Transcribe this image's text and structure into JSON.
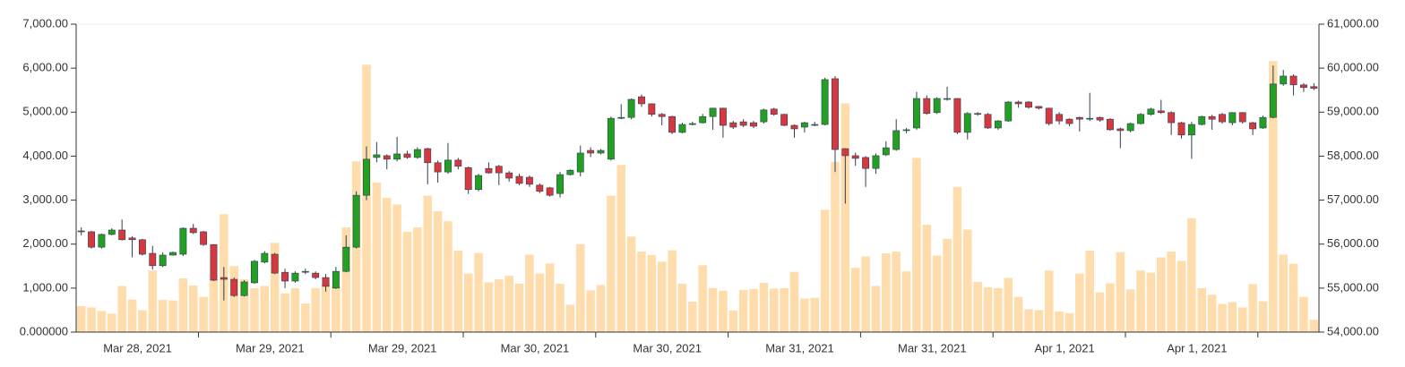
{
  "chart_data": {
    "type": "candlestick",
    "categories": [
      "Mar 28, 2021",
      "Mar 29, 2021",
      "Mar 29, 2021",
      "Mar 30, 2021",
      "Mar 30, 2021",
      "Mar 31, 2021",
      "Mar 31, 2021",
      "Apr 1, 2021",
      "Apr 1, 2021"
    ],
    "open": [
      56300,
      56280,
      55930,
      56220,
      56320,
      56140,
      56100,
      55790,
      55510,
      55750,
      55770,
      56360,
      56280,
      55990,
      55240,
      55200,
      54830,
      55120,
      55590,
      55770,
      55360,
      55160,
      55360,
      55340,
      55240,
      55000,
      55380,
      55930,
      57110,
      57970,
      58010,
      57930,
      58050,
      57970,
      58170,
      57850,
      57640,
      57910,
      57740,
      57240,
      57720,
      57770,
      57620,
      57540,
      57520,
      57340,
      57280,
      57150,
      57580,
      57640,
      58130,
      58070,
      57930,
      58860,
      58880,
      59350,
      59190,
      58950,
      58900,
      58540,
      58720,
      58760,
      58900,
      59090,
      58760,
      58780,
      58760,
      58780,
      59070,
      58950,
      58700,
      58660,
      58700,
      58720,
      59760,
      58170,
      58010,
      57970,
      57720,
      58030,
      58150,
      58580,
      58640,
      59310,
      58990,
      59290,
      59310,
      58540,
      58970,
      58950,
      58640,
      58800,
      59230,
      59230,
      59130,
      59090,
      58950,
      58840,
      58880,
      58840,
      58880,
      58840,
      58620,
      58580,
      58740,
      58950,
      59030,
      58990,
      58760,
      58480,
      58720,
      58900,
      58950,
      58760,
      58990,
      58760,
      58640,
      58880,
      59640,
      59820,
      59620,
      59580
    ],
    "high": [
      56380,
      56300,
      56240,
      56360,
      56560,
      56180,
      56120,
      55960,
      55810,
      55830,
      56380,
      56460,
      56300,
      56000,
      55480,
      55240,
      55180,
      55640,
      55840,
      55800,
      55440,
      55380,
      55440,
      55380,
      55320,
      55480,
      56200,
      57200,
      58220,
      58320,
      58040,
      58440,
      58120,
      58200,
      58190,
      57900,
      58300,
      57960,
      57760,
      57600,
      57860,
      57800,
      57660,
      57600,
      57560,
      57380,
      57300,
      57640,
      57700,
      58240,
      58200,
      58160,
      58900,
      59180,
      59310,
      59400,
      59200,
      58980,
      58920,
      58760,
      58780,
      58960,
      59100,
      59100,
      58800,
      58840,
      58800,
      59080,
      59100,
      58960,
      58720,
      58780,
      58780,
      59780,
      59820,
      58180,
      58080,
      58000,
      58060,
      58340,
      58840,
      58640,
      59460,
      59380,
      59340,
      59580,
      59320,
      59000,
      59000,
      58980,
      58820,
      59250,
      59260,
      59250,
      59140,
      59100,
      59000,
      58860,
      58900,
      59440,
      58900,
      58860,
      58650,
      58760,
      58980,
      59100,
      59280,
      59020,
      58780,
      58780,
      58920,
      58940,
      58980,
      59000,
      59000,
      58780,
      58920,
      60060,
      59960,
      59860,
      59660,
      59660
    ],
    "low": [
      56200,
      55900,
      55900,
      56200,
      56080,
      55700,
      55740,
      55420,
      55480,
      55740,
      55730,
      56230,
      55960,
      55160,
      54720,
      54800,
      54810,
      55100,
      55560,
      55320,
      55000,
      55120,
      55320,
      55200,
      54920,
      54980,
      55360,
      55900,
      57000,
      57860,
      57700,
      57880,
      57940,
      57940,
      57360,
      57400,
      57600,
      57700,
      57140,
      57200,
      57600,
      57340,
      57420,
      57340,
      57300,
      57160,
      57080,
      57060,
      57560,
      57540,
      57980,
      58040,
      57900,
      58840,
      58840,
      59120,
      58900,
      58700,
      58500,
      58520,
      58700,
      58740,
      58600,
      58420,
      58620,
      58660,
      58640,
      58740,
      58920,
      58680,
      58420,
      58540,
      58680,
      58700,
      57640,
      56920,
      57780,
      57300,
      57600,
      58000,
      58120,
      58520,
      58600,
      58940,
      58960,
      59260,
      58500,
      58380,
      58920,
      58620,
      58600,
      58780,
      59100,
      59080,
      59060,
      58700,
      58720,
      58680,
      58560,
      58800,
      58780,
      58580,
      58180,
      58540,
      58720,
      58920,
      58960,
      58480,
      58400,
      57940,
      58700,
      58600,
      58740,
      58700,
      58740,
      58480,
      58620,
      58860,
      59600,
      59380,
      59460,
      59500
    ],
    "close": [
      56280,
      55930,
      56220,
      56320,
      56100,
      56100,
      55770,
      55510,
      55750,
      55810,
      56360,
      56260,
      55990,
      55180,
      55200,
      54830,
      55140,
      55610,
      55790,
      55340,
      55160,
      55340,
      55380,
      55240,
      55040,
      55380,
      55930,
      57110,
      57930,
      58030,
      57930,
      58050,
      57970,
      58150,
      57850,
      57640,
      57910,
      57770,
      57240,
      57560,
      57620,
      57620,
      57500,
      57380,
      57360,
      57200,
      57110,
      57580,
      57680,
      58070,
      58070,
      58130,
      58860,
      58880,
      59290,
      59190,
      58950,
      58900,
      58540,
      58720,
      58740,
      58900,
      59090,
      58700,
      58660,
      58700,
      58680,
      59050,
      58950,
      58700,
      58620,
      58760,
      58720,
      59740,
      58150,
      58010,
      57950,
      57720,
      58010,
      58190,
      58580,
      58600,
      59310,
      58970,
      59310,
      59310,
      58540,
      58970,
      58950,
      58640,
      58800,
      59230,
      59190,
      59110,
      59090,
      58740,
      58800,
      58740,
      58840,
      58860,
      58820,
      58600,
      58580,
      58740,
      58950,
      59070,
      58990,
      58760,
      58480,
      58720,
      58900,
      58840,
      58780,
      58990,
      58780,
      58620,
      58880,
      59640,
      59820,
      59620,
      59560,
      59540
    ],
    "volume": [
      590,
      560,
      480,
      420,
      1050,
      740,
      500,
      1400,
      730,
      720,
      1220,
      1060,
      800,
      1200,
      2680,
      1500,
      1200,
      1000,
      1050,
      2030,
      880,
      1000,
      650,
      1000,
      1100,
      1050,
      2380,
      3880,
      6080,
      3400,
      3050,
      2900,
      2280,
      2380,
      3100,
      2750,
      2520,
      1850,
      1330,
      1800,
      1130,
      1200,
      1280,
      1100,
      1760,
      1330,
      1560,
      1100,
      620,
      2000,
      950,
      1070,
      3100,
      3800,
      2170,
      1830,
      1750,
      1600,
      1860,
      1100,
      690,
      1520,
      1000,
      940,
      490,
      960,
      980,
      1120,
      990,
      1000,
      1370,
      760,
      780,
      2780,
      3870,
      5200,
      1460,
      1720,
      1050,
      1790,
      1830,
      1380,
      3960,
      2440,
      1740,
      2120,
      3300,
      2330,
      1140,
      1020,
      1000,
      1230,
      800,
      520,
      500,
      1400,
      470,
      430,
      1330,
      1850,
      900,
      1110,
      1820,
      970,
      1400,
      1350,
      1700,
      1830,
      1620,
      2590,
      1000,
      850,
      640,
      680,
      560,
      1090,
      700,
      6160,
      1760,
      1550,
      800,
      280
    ],
    "up_color": "#22a022",
    "down_color": "#d63840",
    "volume_color": "#ffdcab",
    "ylim": [
      0,
      7000
    ],
    "yticks": [
      {
        "value": 0,
        "label": "0.000000"
      },
      {
        "value": 1000,
        "label": "1,000.00"
      },
      {
        "value": 2000,
        "label": "2,000.00"
      },
      {
        "value": 3000,
        "label": "3,000.00"
      },
      {
        "value": 4000,
        "label": "4,000.00"
      },
      {
        "value": 5000,
        "label": "5,000.00"
      },
      {
        "value": 6000,
        "label": "6,000.00"
      },
      {
        "value": 7000,
        "label": "7,000.00"
      }
    ],
    "y2lim": [
      54000,
      61000
    ],
    "y2ticks": [
      {
        "value": 54000,
        "label": "54,000.00"
      },
      {
        "value": 55000,
        "label": "55,000.00"
      },
      {
        "value": 56000,
        "label": "56,000.00"
      },
      {
        "value": 57000,
        "label": "57,000.00"
      },
      {
        "value": 58000,
        "label": "58,000.00"
      },
      {
        "value": 59000,
        "label": "59,000.00"
      },
      {
        "value": 60000,
        "label": "60,000.00"
      },
      {
        "value": 61000,
        "label": "61,000.00"
      }
    ]
  }
}
